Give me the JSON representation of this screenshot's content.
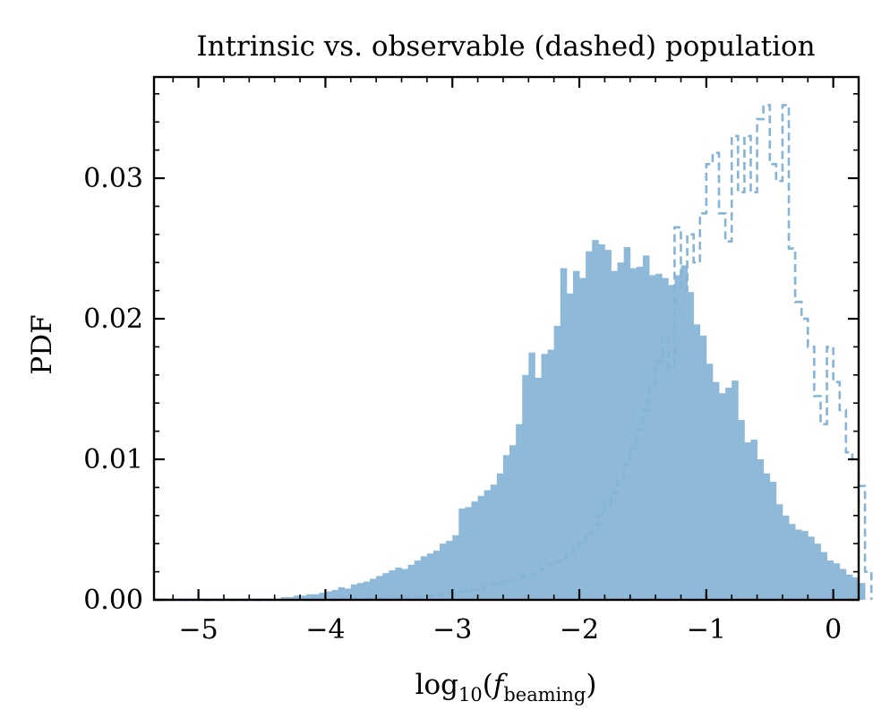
{
  "chart_data": {
    "type": "histogram",
    "title": "Intrinsic vs. observable (dashed) population",
    "xlabel": "log10(f_beaming)",
    "xlabel_parts": {
      "base": "log",
      "sub": "10",
      "open": "(",
      "var": "f",
      "var_sub": "beaming",
      "close": ")"
    },
    "ylabel": "PDF",
    "xlim": [
      -5.35,
      0.2
    ],
    "ylim": [
      0,
      0.0372
    ],
    "xticks": [
      -5,
      -4,
      -3,
      -2,
      -1,
      0
    ],
    "xtick_labels": [
      "−5",
      "−4",
      "−3",
      "−2",
      "−1",
      "0"
    ],
    "yticks": [
      0.0,
      0.01,
      0.02,
      0.03
    ],
    "ytick_labels": [
      "0.00",
      "0.01",
      "0.02",
      "0.03"
    ],
    "grid": false,
    "colors": {
      "intrinsic_fill": "#8fb9d9",
      "observable_line": "#85b4d6",
      "axes": "#000000"
    },
    "bin_start": -5.35,
    "bin_width": 0.05,
    "series": [
      {
        "style": "filled",
        "values": [
          0.0001,
          0.0001,
          0.0001,
          0.0001,
          0.0001,
          0.0001,
          0.0001,
          0.0001,
          0.0001,
          0.0001,
          0.0001,
          0.0001,
          0.0001,
          0.0001,
          0.0001,
          0.0001,
          0.0001,
          0.0001,
          0.0001,
          0.0001,
          0.0002,
          0.0002,
          0.0003,
          0.0003,
          0.0004,
          0.0004,
          0.0005,
          0.0006,
          0.0007,
          0.0009,
          0.0008,
          0.0011,
          0.0012,
          0.0013,
          0.0015,
          0.0017,
          0.0019,
          0.0021,
          0.0023,
          0.0022,
          0.0025,
          0.0028,
          0.0031,
          0.0033,
          0.0035,
          0.004,
          0.0042,
          0.0046,
          0.0065,
          0.0066,
          0.007,
          0.0074,
          0.0078,
          0.0082,
          0.009,
          0.0103,
          0.011,
          0.0125,
          0.016,
          0.0176,
          0.0158,
          0.0175,
          0.0178,
          0.0195,
          0.0236,
          0.0218,
          0.0234,
          0.0229,
          0.0248,
          0.0256,
          0.0253,
          0.0249,
          0.0234,
          0.024,
          0.0251,
          0.0236,
          0.0237,
          0.0245,
          0.0231,
          0.0232,
          0.0229,
          0.0224,
          0.0231,
          0.0238,
          0.0219,
          0.0196,
          0.0188,
          0.0168,
          0.0155,
          0.0147,
          0.0151,
          0.0156,
          0.0128,
          0.0112,
          0.0114,
          0.01,
          0.009,
          0.0084,
          0.0068,
          0.006,
          0.0054,
          0.005,
          0.0049,
          0.0045,
          0.004,
          0.0034,
          0.0028,
          0.0026,
          0.0022,
          0.0018,
          0.0016,
          0.0012
        ]
      },
      {
        "style": "dashed",
        "values": [
          0.0,
          0.0,
          0.0,
          0.0,
          0.0,
          0.0,
          0.0,
          0.0,
          0.0,
          0.0,
          0.0,
          0.0,
          0.0,
          0.0,
          0.0,
          0.0,
          0.0,
          0.0,
          0.0,
          0.0,
          0.0,
          0.0,
          0.0,
          0.0,
          0.0,
          0.0,
          0.0,
          0.0,
          0.0,
          0.0001,
          0.0001,
          0.0001,
          0.0001,
          0.0001,
          0.0001,
          0.0001,
          0.0001,
          0.0001,
          0.0001,
          0.0002,
          0.0002,
          0.0002,
          0.0002,
          0.0003,
          0.0003,
          0.0004,
          0.0005,
          0.0005,
          0.0006,
          0.0006,
          0.0007,
          0.0008,
          0.001,
          0.0011,
          0.0012,
          0.0013,
          0.0014,
          0.0016,
          0.0017,
          0.0018,
          0.0019,
          0.0022,
          0.0025,
          0.0027,
          0.003,
          0.0033,
          0.0036,
          0.0041,
          0.0047,
          0.0053,
          0.006,
          0.0068,
          0.0076,
          0.0085,
          0.0096,
          0.0108,
          0.0121,
          0.0135,
          0.0152,
          0.017,
          0.0187,
          0.0165,
          0.0265,
          0.022,
          0.026,
          0.024,
          0.0275,
          0.031,
          0.0318,
          0.0275,
          0.0255,
          0.033,
          0.029,
          0.033,
          0.029,
          0.0342,
          0.0352,
          0.031,
          0.0298,
          0.0352,
          0.025,
          0.0212,
          0.02,
          0.018,
          0.0145,
          0.0125,
          0.018,
          0.0155,
          0.0135,
          0.0105,
          0.01,
          0.0081,
          0.002
        ]
      }
    ]
  }
}
